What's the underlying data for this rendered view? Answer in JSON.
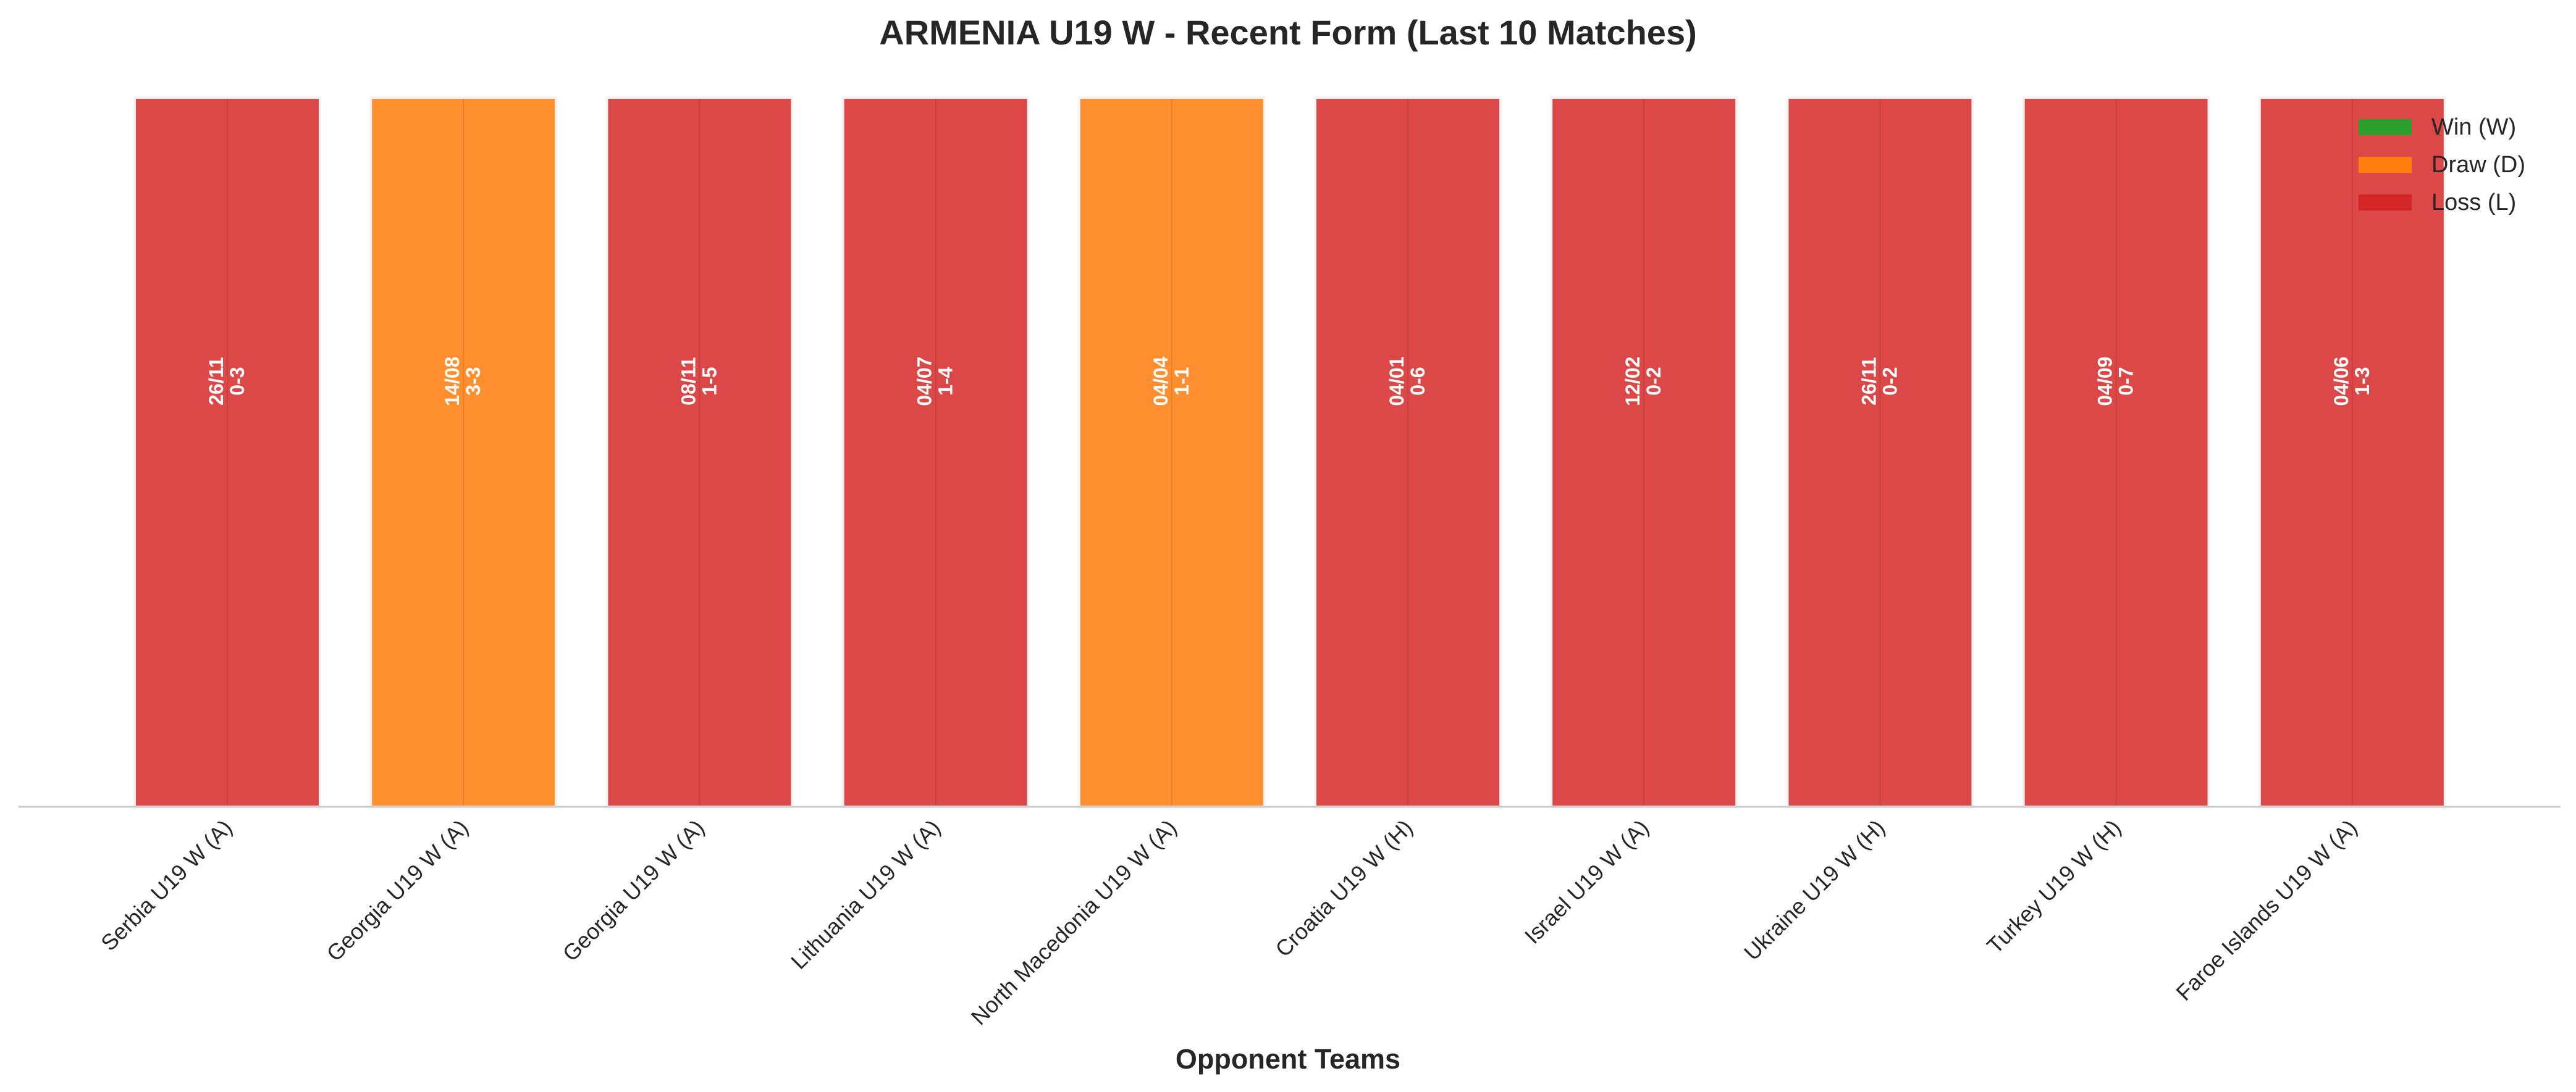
{
  "chart_data": {
    "type": "bar",
    "title": "ARMENIA U19 W - Recent Form (Last 10 Matches)",
    "xlabel": "Opponent Teams",
    "ylabel": "",
    "ylim": [
      0,
      1
    ],
    "grid": false,
    "legend_placement": "top-right",
    "categories": [
      "Serbia U19 W (A)",
      "Georgia U19 W (A)",
      "Georgia U19 W (A)",
      "Lithuania U19 W (A)",
      "North Macedonia U19 W (A)",
      "Croatia U19 W (H)",
      "Israel U19 W (A)",
      "Ukraine U19 W (H)",
      "Turkey U19 W (H)",
      "Faroe Islands U19 W (A)"
    ],
    "values": [
      1,
      1,
      1,
      1,
      1,
      1,
      1,
      1,
      1,
      1
    ],
    "results": [
      "L",
      "D",
      "L",
      "L",
      "D",
      "L",
      "L",
      "L",
      "L",
      "L"
    ],
    "dates": [
      "26/11",
      "14/08",
      "08/11",
      "04/07",
      "04/04",
      "04/01",
      "12/02",
      "26/11",
      "04/09",
      "04/06"
    ],
    "scores": [
      "0-3",
      "3-3",
      "1-5",
      "1-4",
      "1-1",
      "0-6",
      "0-2",
      "0-2",
      "0-7",
      "1-3"
    ],
    "legend": [
      {
        "key": "W",
        "label": "Win (W)",
        "color": "#2ca02c"
      },
      {
        "key": "D",
        "label": "Draw (D)",
        "color": "#ff7f0e"
      },
      {
        "key": "L",
        "label": "Loss (L)",
        "color": "#d62728"
      }
    ],
    "bar_colors": {
      "W": "#2ca02c",
      "D": "#ff8f2e",
      "L": "#dc4747"
    }
  }
}
